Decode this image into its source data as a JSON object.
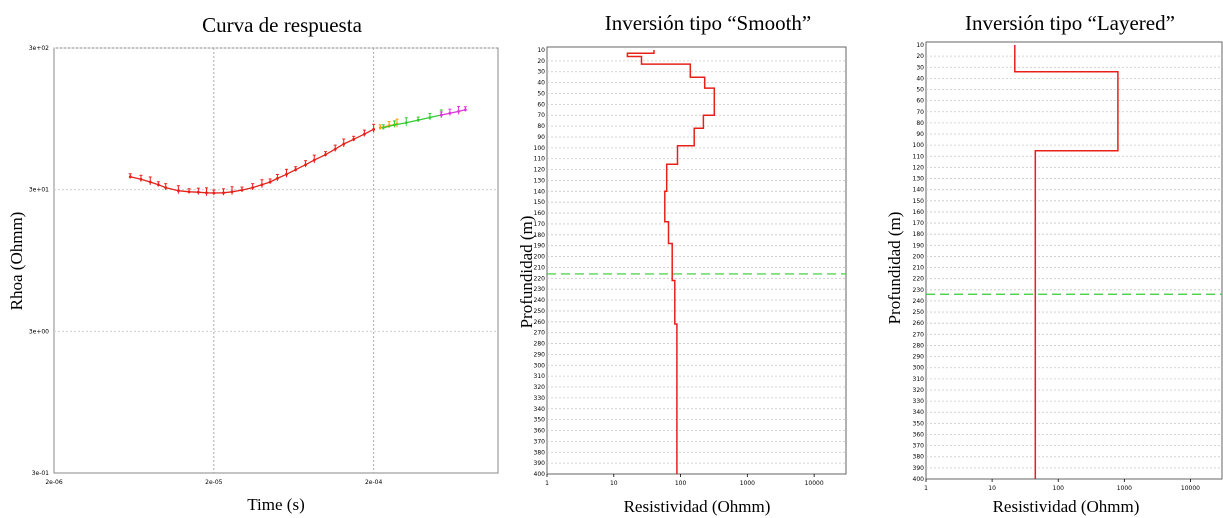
{
  "chart_data": [
    {
      "id": "response",
      "type": "line",
      "scale": "log-log",
      "title": "Curva de respuesta",
      "xlabel": "Time (s)",
      "ylabel": "Rhoa (Ohmm)",
      "xlim": [
        2e-06,
        0.0012
      ],
      "ylim": [
        0.3,
        300
      ],
      "x_ticks": [
        {
          "v": 2e-06,
          "label": "2e-06"
        },
        {
          "v": 2e-05,
          "label": "2e-05"
        },
        {
          "v": 0.0002,
          "label": "2e-04"
        }
      ],
      "y_ticks": [
        {
          "v": 0.3,
          "label": "3e-01"
        },
        {
          "v": 3,
          "label": "3e+00"
        },
        {
          "v": 30,
          "label": "3e+01"
        },
        {
          "v": 300,
          "label": "3e+02"
        }
      ],
      "grid": true,
      "colors": {
        "line": "#e8201a",
        "orange": "#ff9900",
        "green": "#33cc33",
        "magenta": "#dd33dd"
      },
      "series": [
        {
          "color": "#e8201a",
          "x": [
            6e-06,
            7e-06,
            8e-06,
            9e-06,
            1e-05,
            1.2e-05,
            1.4e-05,
            1.6e-05,
            1.8e-05,
            2e-05,
            2.3e-05,
            2.6e-05,
            3e-05,
            3.5e-05,
            4e-05,
            4.5e-05,
            5e-05,
            5.7e-05,
            6.5e-05,
            7.5e-05,
            8.5e-05,
            0.0001,
            0.000115,
            0.00013,
            0.00015,
            0.000175,
            0.0002
          ],
          "y": [
            37,
            35.5,
            34,
            32.5,
            31,
            29.5,
            29,
            28.8,
            28.5,
            28.4,
            28.5,
            29,
            29.8,
            31,
            32.5,
            34,
            36,
            38.5,
            41.5,
            45,
            48.5,
            53,
            58,
            63,
            68,
            74,
            80
          ]
        },
        {
          "color": "#ff9900",
          "x": [
            0.00022,
            0.00025,
            0.00028
          ],
          "y": [
            82,
            85,
            87
          ]
        },
        {
          "color": "#33cc33",
          "x": [
            0.00023,
            0.00027,
            0.00032,
            0.00038,
            0.00045,
            0.00053
          ],
          "y": [
            82,
            86,
            89,
            93,
            97,
            101
          ]
        },
        {
          "color": "#dd33dd",
          "x": [
            0.00053,
            0.0006,
            0.00068,
            0.00075
          ],
          "y": [
            101,
            104,
            107,
            110
          ]
        }
      ]
    },
    {
      "id": "smooth",
      "type": "line",
      "scale": "semilog-x",
      "title": "Inversión tipo “Smooth”",
      "xlabel": "Resistividad  (Ohmm)",
      "ylabel": "Profundidad  (m)",
      "xlim": [
        1,
        30000
      ],
      "ylim": [
        400,
        10
      ],
      "x_ticks": [
        {
          "v": 1,
          "label": "1"
        },
        {
          "v": 10,
          "label": "10"
        },
        {
          "v": 100,
          "label": "100"
        },
        {
          "v": 1000,
          "label": "1000"
        },
        {
          "v": 10000,
          "label": "10000"
        }
      ],
      "y_ticks": [
        "10",
        "20",
        "30",
        "40",
        "50",
        "60",
        "70",
        "80",
        "90",
        "100",
        "110",
        "120",
        "130",
        "140",
        "150",
        "160",
        "170",
        "180",
        "190",
        "200",
        "210",
        "220",
        "230",
        "240",
        "250",
        "260",
        "270",
        "280",
        "290",
        "300",
        "310",
        "320",
        "330",
        "340",
        "350",
        "360",
        "370",
        "380",
        "390",
        "400"
      ],
      "doi_depth": 216,
      "colors": {
        "line": "#e8201a",
        "doi": "#33cc33",
        "grid": "#c8c8c8"
      },
      "profile": [
        [
          40,
          10
        ],
        [
          40,
          13
        ],
        [
          16,
          13
        ],
        [
          16,
          16
        ],
        [
          26,
          16
        ],
        [
          26,
          23
        ],
        [
          140,
          23
        ],
        [
          140,
          35
        ],
        [
          230,
          35
        ],
        [
          230,
          45
        ],
        [
          320,
          45
        ],
        [
          320,
          70
        ],
        [
          220,
          70
        ],
        [
          220,
          82
        ],
        [
          160,
          82
        ],
        [
          160,
          98
        ],
        [
          90,
          98
        ],
        [
          90,
          115
        ],
        [
          62,
          115
        ],
        [
          62,
          140
        ],
        [
          58,
          140
        ],
        [
          58,
          168
        ],
        [
          66,
          168
        ],
        [
          66,
          188
        ],
        [
          75,
          188
        ],
        [
          75,
          222
        ],
        [
          82,
          222
        ],
        [
          82,
          262
        ],
        [
          88,
          262
        ],
        [
          88,
          400
        ]
      ]
    },
    {
      "id": "layered",
      "type": "line",
      "scale": "semilog-x",
      "title": "Inversión tipo “Layered”",
      "xlabel": "Resistividad  (Ohmm)",
      "ylabel": "Profundidad  (m)",
      "xlim": [
        1,
        30000
      ],
      "ylim": [
        400,
        10
      ],
      "x_ticks": [
        {
          "v": 1,
          "label": "1"
        },
        {
          "v": 10,
          "label": "10"
        },
        {
          "v": 100,
          "label": "100"
        },
        {
          "v": 1000,
          "label": "1000"
        },
        {
          "v": 10000,
          "label": "10000"
        }
      ],
      "y_ticks": [
        "10",
        "20",
        "30",
        "40",
        "50",
        "60",
        "70",
        "80",
        "90",
        "100",
        "110",
        "120",
        "130",
        "140",
        "150",
        "160",
        "170",
        "180",
        "190",
        "200",
        "210",
        "220",
        "230",
        "240",
        "250",
        "260",
        "270",
        "280",
        "290",
        "300",
        "310",
        "320",
        "330",
        "340",
        "350",
        "360",
        "370",
        "380",
        "390",
        "400"
      ],
      "doi_depth": 234,
      "colors": {
        "line": "#e8201a",
        "doi": "#33cc33",
        "grid": "#c8c8c8"
      },
      "profile": [
        [
          22,
          10
        ],
        [
          22,
          34
        ],
        [
          800,
          34
        ],
        [
          800,
          105
        ],
        [
          45,
          105
        ],
        [
          45,
          400
        ]
      ]
    }
  ]
}
